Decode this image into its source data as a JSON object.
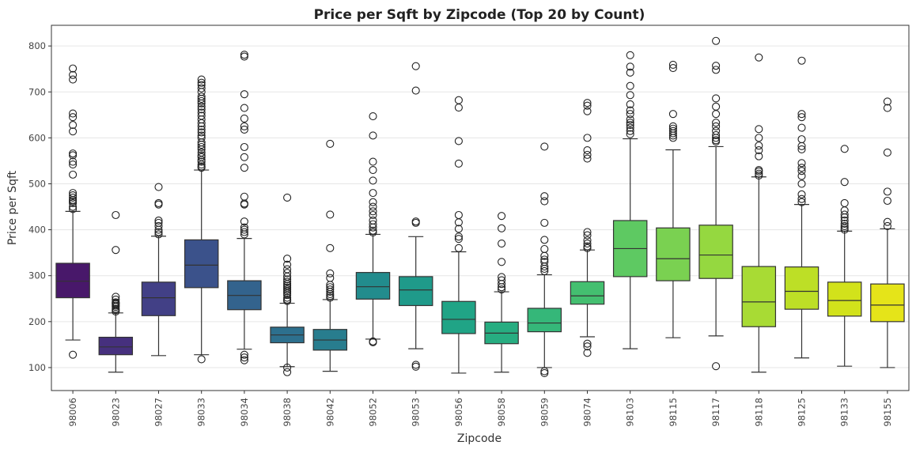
{
  "chart_data": {
    "type": "box",
    "title": "Price per Sqft by Zipcode (Top 20 by Count)",
    "xlabel": "Zipcode",
    "ylabel": "Price per Sqft",
    "ylim": [
      50,
      845
    ],
    "yticks": [
      100,
      200,
      300,
      400,
      500,
      600,
      700,
      800
    ],
    "grid": true,
    "box_colors": [
      "#48186a",
      "#46307e",
      "#424086",
      "#3b528b",
      "#33638d",
      "#2d708e",
      "#287d8e",
      "#228c8d",
      "#1f9a8a",
      "#20a486",
      "#27ad81",
      "#35b779",
      "#44bf70",
      "#5ec962",
      "#7ad151",
      "#95d840",
      "#a8db34",
      "#bddf26",
      "#d2e21b",
      "#e5e419"
    ],
    "boxes": [
      {
        "label": "98006",
        "whisker_low": 160,
        "q1": 252,
        "median": 288,
        "q3": 327,
        "whisker_high": 440,
        "outliers": [
          128,
          445,
          450,
          458,
          462,
          465,
          470,
          475,
          480,
          520,
          542,
          548,
          562,
          566,
          614,
          628,
          645,
          653,
          727,
          737,
          751
        ]
      },
      {
        "label": "98023",
        "whisker_low": 90,
        "q1": 128,
        "median": 145,
        "q3": 166,
        "whisker_high": 219,
        "outliers": [
          222,
          225,
          228,
          232,
          235,
          238,
          240,
          242,
          248,
          254,
          356,
          432
        ]
      },
      {
        "label": "98027",
        "whisker_low": 126,
        "q1": 213,
        "median": 252,
        "q3": 286,
        "whisker_high": 386,
        "outliers": [
          390,
          395,
          400,
          408,
          415,
          420,
          455,
          458,
          493
        ]
      },
      {
        "label": "98033",
        "whisker_low": 128,
        "q1": 274,
        "median": 323,
        "q3": 378,
        "whisker_high": 530,
        "outliers": [
          118,
          535,
          538,
          542,
          548,
          552,
          558,
          562,
          568,
          575,
          580,
          585,
          590,
          600,
          605,
          612,
          618,
          625,
          632,
          640,
          648,
          655,
          662,
          668,
          675,
          680,
          685,
          690,
          700,
          708,
          715,
          720,
          727
        ]
      },
      {
        "label": "98034",
        "whisker_low": 140,
        "q1": 226,
        "median": 257,
        "q3": 289,
        "whisker_high": 381,
        "outliers": [
          116,
          122,
          128,
          390,
          395,
          400,
          405,
          418,
          455,
          457,
          472,
          535,
          558,
          580,
          618,
          625,
          642,
          665,
          695,
          777,
          781
        ]
      },
      {
        "label": "98038",
        "whisker_low": 102,
        "q1": 154,
        "median": 171,
        "q3": 188,
        "whisker_high": 240,
        "outliers": [
          90,
          100,
          245,
          248,
          252,
          258,
          262,
          266,
          270,
          274,
          278,
          282,
          287,
          292,
          298,
          306,
          314,
          324,
          337,
          470
        ]
      },
      {
        "label": "98042",
        "whisker_low": 92,
        "q1": 138,
        "median": 160,
        "q3": 183,
        "whisker_high": 248,
        "outliers": [
          252,
          256,
          260,
          265,
          270,
          275,
          280,
          295,
          305,
          360,
          433,
          587
        ]
      },
      {
        "label": "98052",
        "whisker_low": 162,
        "q1": 249,
        "median": 276,
        "q3": 307,
        "whisker_high": 390,
        "outliers": [
          155,
          157,
          394,
          398,
          405,
          412,
          420,
          432,
          440,
          450,
          460,
          480,
          507,
          530,
          548,
          605,
          647
        ]
      },
      {
        "label": "98053",
        "whisker_low": 141,
        "q1": 235,
        "median": 269,
        "q3": 298,
        "whisker_high": 385,
        "outliers": [
          102,
          106,
          415,
          418,
          703,
          756
        ]
      },
      {
        "label": "98056",
        "whisker_low": 88,
        "q1": 174,
        "median": 205,
        "q3": 244,
        "whisker_high": 352,
        "outliers": [
          360,
          380,
          385,
          402,
          416,
          432,
          544,
          593,
          666,
          682
        ]
      },
      {
        "label": "98058",
        "whisker_low": 90,
        "q1": 152,
        "median": 175,
        "q3": 199,
        "whisker_high": 265,
        "outliers": [
          270,
          275,
          282,
          290,
          297,
          330,
          370,
          403,
          430
        ]
      },
      {
        "label": "98059",
        "whisker_low": 100,
        "q1": 178,
        "median": 197,
        "q3": 229,
        "whisker_high": 302,
        "outliers": [
          88,
          92,
          310,
          315,
          320,
          330,
          335,
          343,
          358,
          378,
          415,
          462,
          473,
          581
        ]
      },
      {
        "label": "98074",
        "whisker_low": 167,
        "q1": 238,
        "median": 256,
        "q3": 287,
        "whisker_high": 356,
        "outliers": [
          132,
          146,
          152,
          360,
          364,
          370,
          377,
          388,
          395,
          555,
          563,
          573,
          600,
          658,
          670,
          676
        ]
      },
      {
        "label": "98103",
        "whisker_low": 141,
        "q1": 298,
        "median": 359,
        "q3": 420,
        "whisker_high": 598,
        "outliers": [
          608,
          615,
          622,
          628,
          633,
          640,
          652,
          660,
          673,
          693,
          713,
          742,
          755,
          780
        ]
      },
      {
        "label": "98115",
        "whisker_low": 165,
        "q1": 289,
        "median": 337,
        "q3": 404,
        "whisker_high": 574,
        "outliers": [
          600,
          605,
          610,
          615,
          620,
          625,
          652,
          752,
          759
        ]
      },
      {
        "label": "98117",
        "whisker_low": 169,
        "q1": 294,
        "median": 345,
        "q3": 410,
        "whisker_high": 581,
        "outliers": [
          103,
          592,
          595,
          600,
          606,
          615,
          625,
          633,
          652,
          668,
          686,
          748,
          757,
          811
        ]
      },
      {
        "label": "98118",
        "whisker_low": 90,
        "q1": 189,
        "median": 243,
        "q3": 320,
        "whisker_high": 515,
        "outliers": [
          518,
          522,
          527,
          530,
          560,
          573,
          583,
          600,
          619,
          775
        ]
      },
      {
        "label": "98125",
        "whisker_low": 121,
        "q1": 227,
        "median": 266,
        "q3": 319,
        "whisker_high": 455,
        "outliers": [
          460,
          467,
          477,
          500,
          517,
          528,
          535,
          545,
          575,
          582,
          597,
          622,
          645,
          652,
          768
        ]
      },
      {
        "label": "98133",
        "whisker_low": 103,
        "q1": 212,
        "median": 246,
        "q3": 286,
        "whisker_high": 397,
        "outliers": [
          400,
          404,
          408,
          413,
          420,
          427,
          433,
          442,
          458,
          504,
          576
        ]
      },
      {
        "label": "98155",
        "whisker_low": 100,
        "q1": 200,
        "median": 236,
        "q3": 282,
        "whisker_high": 402,
        "outliers": [
          408,
          417,
          463,
          483,
          568,
          665,
          679
        ]
      }
    ]
  }
}
